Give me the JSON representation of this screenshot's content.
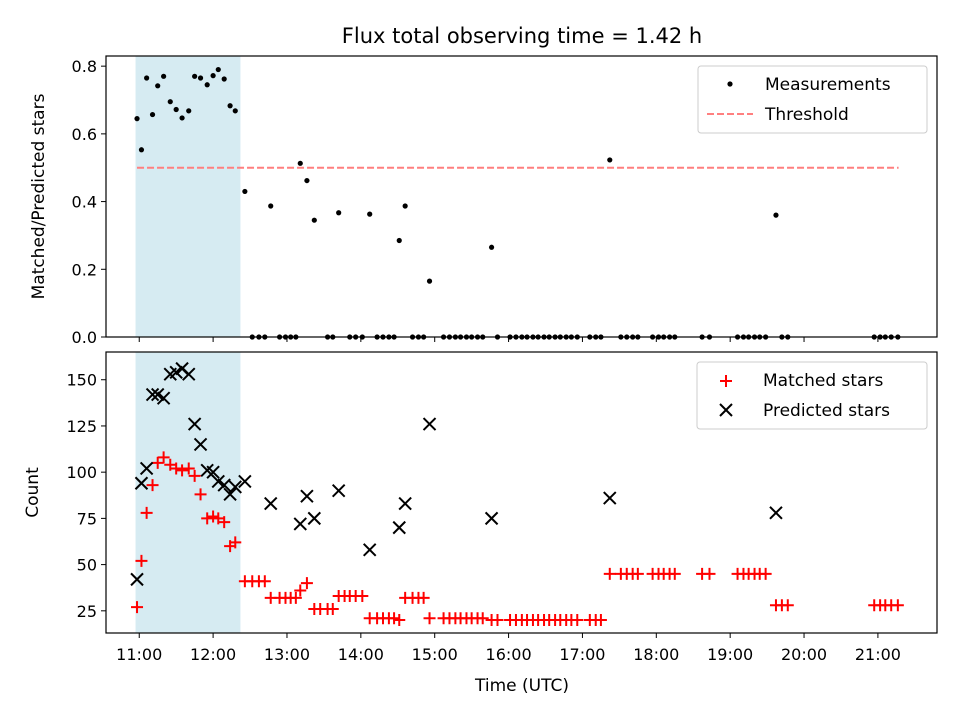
{
  "figure": {
    "title": "Flux total observing time = 1.42 h"
  },
  "highlight": {
    "start": 10.95,
    "end": 12.37,
    "color": "#add8e6"
  },
  "chart_data": [
    {
      "type": "scatter",
      "xlabel": "",
      "ylabel": "Matched/Predicted stars",
      "xlim": [
        10.55,
        21.8
      ],
      "ylim": [
        0,
        0.83
      ],
      "yticks": [
        0.0,
        0.2,
        0.4,
        0.6,
        0.8
      ],
      "ytick_labels": [
        "0.0",
        "0.2",
        "0.4",
        "0.6",
        "0.8"
      ],
      "legend_position": "top-right",
      "series": [
        {
          "name": "Measurements",
          "marker": "dot",
          "color": "#000000",
          "points": [
            [
              10.97,
              0.645
            ],
            [
              11.03,
              0.553
            ],
            [
              11.1,
              0.765
            ],
            [
              11.18,
              0.657
            ],
            [
              11.25,
              0.742
            ],
            [
              11.33,
              0.77
            ],
            [
              11.42,
              0.695
            ],
            [
              11.5,
              0.672
            ],
            [
              11.58,
              0.647
            ],
            [
              11.67,
              0.668
            ],
            [
              11.75,
              0.77
            ],
            [
              11.83,
              0.765
            ],
            [
              11.92,
              0.745
            ],
            [
              12.0,
              0.772
            ],
            [
              12.07,
              0.79
            ],
            [
              12.15,
              0.762
            ],
            [
              12.23,
              0.683
            ],
            [
              12.3,
              0.668
            ],
            [
              12.43,
              0.43
            ],
            [
              12.78,
              0.387
            ],
            [
              13.18,
              0.513
            ],
            [
              13.27,
              0.462
            ],
            [
              13.37,
              0.345
            ],
            [
              13.7,
              0.367
            ],
            [
              14.12,
              0.363
            ],
            [
              14.52,
              0.285
            ],
            [
              14.6,
              0.387
            ],
            [
              14.93,
              0.165
            ],
            [
              15.77,
              0.265
            ],
            [
              17.37,
              0.523
            ],
            [
              19.62,
              0.36
            ],
            [
              12.53,
              0
            ],
            [
              12.62,
              0
            ],
            [
              12.7,
              0
            ],
            [
              12.9,
              0
            ],
            [
              12.98,
              0
            ],
            [
              13.05,
              0
            ],
            [
              13.12,
              0
            ],
            [
              13.55,
              0
            ],
            [
              13.62,
              0
            ],
            [
              13.85,
              0
            ],
            [
              13.93,
              0
            ],
            [
              14.02,
              0
            ],
            [
              14.22,
              0
            ],
            [
              14.3,
              0
            ],
            [
              14.38,
              0
            ],
            [
              14.45,
              0
            ],
            [
              14.7,
              0
            ],
            [
              14.78,
              0
            ],
            [
              14.85,
              0
            ],
            [
              15.12,
              0
            ],
            [
              15.2,
              0
            ],
            [
              15.28,
              0
            ],
            [
              15.35,
              0
            ],
            [
              15.43,
              0
            ],
            [
              15.5,
              0
            ],
            [
              15.58,
              0
            ],
            [
              15.65,
              0
            ],
            [
              15.85,
              0
            ],
            [
              16.02,
              0
            ],
            [
              16.1,
              0
            ],
            [
              16.18,
              0
            ],
            [
              16.25,
              0
            ],
            [
              16.33,
              0
            ],
            [
              16.4,
              0
            ],
            [
              16.48,
              0
            ],
            [
              16.55,
              0
            ],
            [
              16.63,
              0
            ],
            [
              16.7,
              0
            ],
            [
              16.78,
              0
            ],
            [
              16.85,
              0
            ],
            [
              16.93,
              0
            ],
            [
              17.1,
              0
            ],
            [
              17.18,
              0
            ],
            [
              17.25,
              0
            ],
            [
              17.52,
              0
            ],
            [
              17.6,
              0
            ],
            [
              17.68,
              0
            ],
            [
              17.75,
              0
            ],
            [
              17.95,
              0
            ],
            [
              18.03,
              0
            ],
            [
              18.1,
              0
            ],
            [
              18.18,
              0
            ],
            [
              18.25,
              0
            ],
            [
              18.62,
              0
            ],
            [
              18.72,
              0
            ],
            [
              19.1,
              0
            ],
            [
              19.18,
              0
            ],
            [
              19.25,
              0
            ],
            [
              19.33,
              0
            ],
            [
              19.4,
              0
            ],
            [
              19.48,
              0
            ],
            [
              19.7,
              0
            ],
            [
              19.78,
              0
            ],
            [
              20.95,
              0
            ],
            [
              21.03,
              0
            ],
            [
              21.1,
              0
            ],
            [
              21.18,
              0
            ],
            [
              21.27,
              0
            ]
          ]
        },
        {
          "name": "Threshold",
          "kind": "dashed-line",
          "color": "#ff7f7f",
          "x": [
            10.97,
            21.28
          ],
          "y": [
            0.5,
            0.5
          ]
        }
      ]
    },
    {
      "type": "scatter",
      "xlabel": "Time (UTC)",
      "ylabel": "Count",
      "xlim": [
        10.55,
        21.8
      ],
      "ylim": [
        13,
        165
      ],
      "yticks": [
        25,
        50,
        75,
        100,
        125,
        150
      ],
      "ytick_labels": [
        "25",
        "50",
        "75",
        "100",
        "125",
        "150"
      ],
      "xticks": [
        11,
        12,
        13,
        14,
        15,
        16,
        17,
        18,
        19,
        20,
        21
      ],
      "xtick_labels": [
        "11:00",
        "12:00",
        "13:00",
        "14:00",
        "15:00",
        "16:00",
        "17:00",
        "18:00",
        "19:00",
        "20:00",
        "21:00"
      ],
      "legend_position": "top-right",
      "series": [
        {
          "name": "Matched stars",
          "marker": "plus",
          "color": "#ff0000",
          "points": [
            [
              10.97,
              27
            ],
            [
              11.03,
              52
            ],
            [
              11.1,
              78
            ],
            [
              11.18,
              93
            ],
            [
              11.25,
              105
            ],
            [
              11.33,
              108
            ],
            [
              11.42,
              104
            ],
            [
              11.5,
              102
            ],
            [
              11.58,
              101
            ],
            [
              11.67,
              102
            ],
            [
              11.75,
              98
            ],
            [
              11.83,
              88
            ],
            [
              11.92,
              75
            ],
            [
              12.0,
              76
            ],
            [
              12.07,
              75
            ],
            [
              12.15,
              73
            ],
            [
              12.23,
              60
            ],
            [
              12.3,
              62
            ],
            [
              12.43,
              41
            ],
            [
              12.53,
              41
            ],
            [
              12.62,
              41
            ],
            [
              12.7,
              41
            ],
            [
              12.78,
              32
            ],
            [
              12.9,
              32
            ],
            [
              12.98,
              32
            ],
            [
              13.05,
              32
            ],
            [
              13.12,
              32
            ],
            [
              13.18,
              36
            ],
            [
              13.27,
              40
            ],
            [
              13.37,
              26
            ],
            [
              13.45,
              26
            ],
            [
              13.55,
              26
            ],
            [
              13.62,
              26
            ],
            [
              13.7,
              33
            ],
            [
              13.78,
              33
            ],
            [
              13.85,
              33
            ],
            [
              13.93,
              33
            ],
            [
              14.02,
              33
            ],
            [
              14.12,
              21
            ],
            [
              14.22,
              21
            ],
            [
              14.3,
              21
            ],
            [
              14.38,
              21
            ],
            [
              14.45,
              21
            ],
            [
              14.52,
              20
            ],
            [
              14.6,
              32
            ],
            [
              14.7,
              32
            ],
            [
              14.78,
              32
            ],
            [
              14.85,
              32
            ],
            [
              14.93,
              21
            ],
            [
              15.12,
              21
            ],
            [
              15.2,
              21
            ],
            [
              15.28,
              21
            ],
            [
              15.35,
              21
            ],
            [
              15.43,
              21
            ],
            [
              15.5,
              21
            ],
            [
              15.58,
              21
            ],
            [
              15.65,
              21
            ],
            [
              15.77,
              20
            ],
            [
              15.85,
              20
            ],
            [
              16.02,
              20
            ],
            [
              16.1,
              20
            ],
            [
              16.18,
              20
            ],
            [
              16.25,
              20
            ],
            [
              16.33,
              20
            ],
            [
              16.4,
              20
            ],
            [
              16.48,
              20
            ],
            [
              16.55,
              20
            ],
            [
              16.63,
              20
            ],
            [
              16.7,
              20
            ],
            [
              16.78,
              20
            ],
            [
              16.85,
              20
            ],
            [
              16.93,
              20
            ],
            [
              17.1,
              20
            ],
            [
              17.18,
              20
            ],
            [
              17.25,
              20
            ],
            [
              17.37,
              45
            ],
            [
              17.52,
              45
            ],
            [
              17.6,
              45
            ],
            [
              17.68,
              45
            ],
            [
              17.75,
              45
            ],
            [
              17.95,
              45
            ],
            [
              18.03,
              45
            ],
            [
              18.1,
              45
            ],
            [
              18.18,
              45
            ],
            [
              18.25,
              45
            ],
            [
              18.62,
              45
            ],
            [
              18.72,
              45
            ],
            [
              19.1,
              45
            ],
            [
              19.18,
              45
            ],
            [
              19.25,
              45
            ],
            [
              19.33,
              45
            ],
            [
              19.4,
              45
            ],
            [
              19.48,
              45
            ],
            [
              19.62,
              28
            ],
            [
              19.7,
              28
            ],
            [
              19.78,
              28
            ],
            [
              20.95,
              28
            ],
            [
              21.03,
              28
            ],
            [
              21.1,
              28
            ],
            [
              21.18,
              28
            ],
            [
              21.27,
              28
            ]
          ]
        },
        {
          "name": "Predicted stars",
          "marker": "x",
          "color": "#000000",
          "points": [
            [
              10.97,
              42
            ],
            [
              11.03,
              94
            ],
            [
              11.1,
              102
            ],
            [
              11.18,
              142
            ],
            [
              11.25,
              142
            ],
            [
              11.33,
              140
            ],
            [
              11.42,
              153
            ],
            [
              11.5,
              154
            ],
            [
              11.58,
              156
            ],
            [
              11.67,
              153
            ],
            [
              11.75,
              126
            ],
            [
              11.83,
              115
            ],
            [
              11.92,
              101
            ],
            [
              12.0,
              100
            ],
            [
              12.07,
              95
            ],
            [
              12.15,
              93
            ],
            [
              12.23,
              88
            ],
            [
              12.3,
              92
            ],
            [
              12.43,
              95
            ],
            [
              12.78,
              83
            ],
            [
              13.18,
              72
            ],
            [
              13.27,
              87
            ],
            [
              13.37,
              75
            ],
            [
              13.7,
              90
            ],
            [
              14.12,
              58
            ],
            [
              14.52,
              70
            ],
            [
              14.6,
              83
            ],
            [
              14.93,
              126
            ],
            [
              15.77,
              75
            ],
            [
              17.37,
              86
            ],
            [
              19.62,
              78
            ]
          ]
        }
      ]
    }
  ]
}
